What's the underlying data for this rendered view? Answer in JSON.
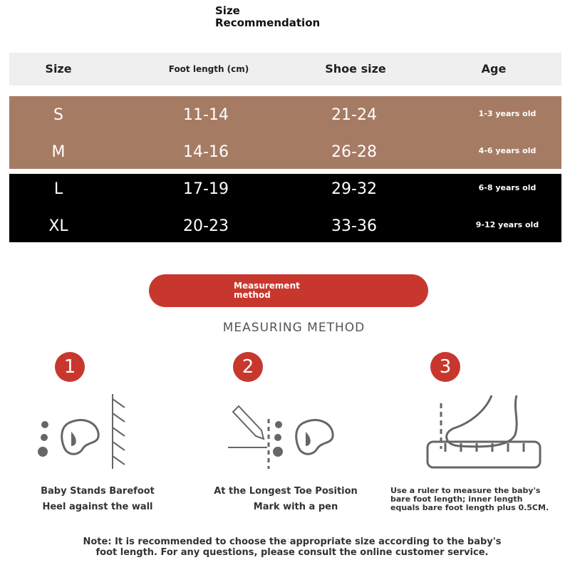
{
  "title": [
    "Size",
    "Recommendation"
  ],
  "table": {
    "headers": [
      "Size",
      "Foot length (cm)",
      "Shoe size",
      "Age"
    ],
    "rows": [
      {
        "size": "S",
        "foot": "11-14",
        "shoe": "21-24",
        "age": "1-3 years old"
      },
      {
        "size": "M",
        "foot": "14-16",
        "shoe": "26-28",
        "age": "4-6 years old"
      },
      {
        "size": "L",
        "foot": "17-19",
        "shoe": "29-32",
        "age": "6-8 years old"
      },
      {
        "size": "XL",
        "foot": "20-23",
        "shoe": "33-36",
        "age": "9-12 years old"
      }
    ]
  },
  "button": [
    "Measurement",
    "method"
  ],
  "section_heading": "MEASURING METHOD",
  "steps": [
    {
      "num": "1",
      "icon": "footprint-wall-icon",
      "lines": [
        "Baby Stands Barefoot",
        "Heel against the wall"
      ]
    },
    {
      "num": "2",
      "icon": "pen-mark-footprint-icon",
      "lines": [
        "At the Longest Toe Position",
        "Mark with a pen"
      ]
    },
    {
      "num": "3",
      "icon": "foot-ruler-icon",
      "lines": [
        "Use a ruler to measure the baby's",
        "bare foot length; inner length",
        "equals bare foot length plus 0.5CM."
      ]
    }
  ],
  "note": [
    "Note: It is recommended to choose the appropriate size according to the baby's",
    "foot length. For any questions, please consult the online customer service."
  ],
  "colors": {
    "brown": "#a67b64",
    "black": "#000000",
    "accent": "#c8372d",
    "header": "#efefef"
  }
}
